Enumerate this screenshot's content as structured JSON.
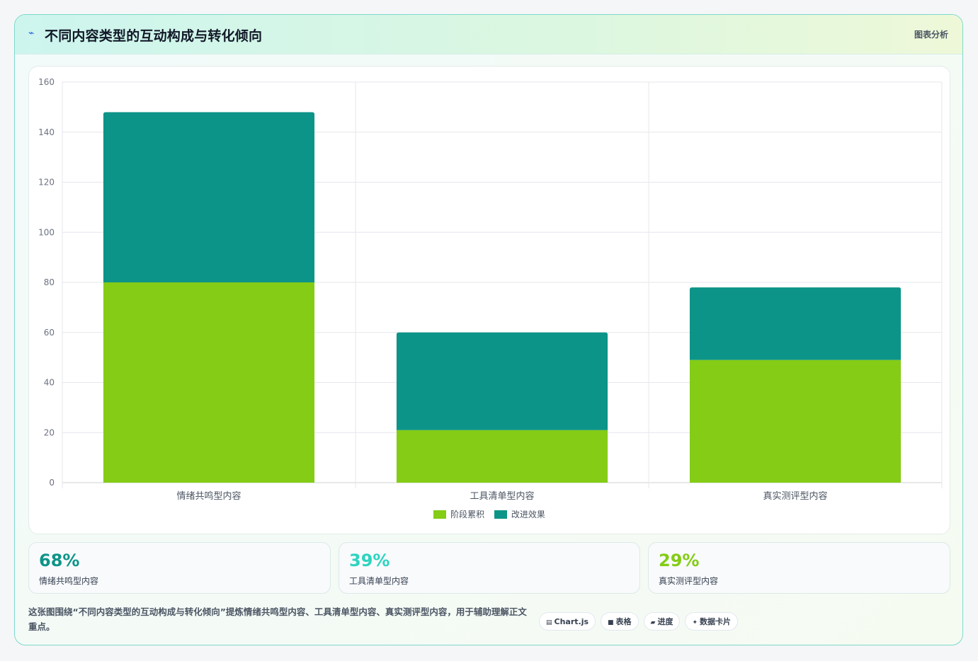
{
  "header": {
    "icon": "chart-pulse-icon",
    "title": "不同内容类型的互动构成与转化倾向",
    "tag": "图表分析"
  },
  "chart_data": {
    "type": "bar",
    "stacked": true,
    "categories": [
      "情绪共鸣型内容",
      "工具清单型内容",
      "真实测评型内容"
    ],
    "series": [
      {
        "name": "阶段累积",
        "color": "#84cc16",
        "values": [
          80,
          21,
          49
        ]
      },
      {
        "name": "改进效果",
        "color": "#0d9488",
        "values": [
          68,
          39,
          29
        ]
      }
    ],
    "ylim": [
      0,
      160
    ],
    "yticks": [
      0,
      20,
      40,
      60,
      80,
      100,
      120,
      140,
      160
    ],
    "grid": true,
    "legend": "bottom",
    "title": "",
    "xlabel": "",
    "ylabel": ""
  },
  "stats": [
    {
      "value": "68%",
      "label": "情绪共鸣型内容",
      "color": "#0d9488"
    },
    {
      "value": "39%",
      "label": "工具清单型内容",
      "color": "#2dd4bf"
    },
    {
      "value": "29%",
      "label": "真实测评型内容",
      "color": "#84cc16"
    }
  ],
  "footnote": "这张图围绕“不同内容类型的互动构成与转化倾向”提炼情绪共鸣型内容、工具清单型内容、真实测评型内容，用于辅助理解正文重点。",
  "chips": [
    {
      "icon": "chart-icon",
      "glyph": "▤",
      "label": "Chart.js"
    },
    {
      "icon": "table-icon",
      "glyph": "■",
      "label": "表格"
    },
    {
      "icon": "progress-icon",
      "glyph": "▰",
      "label": "进度"
    },
    {
      "icon": "sparkle-icon",
      "glyph": "✦",
      "label": "数据卡片"
    }
  ]
}
